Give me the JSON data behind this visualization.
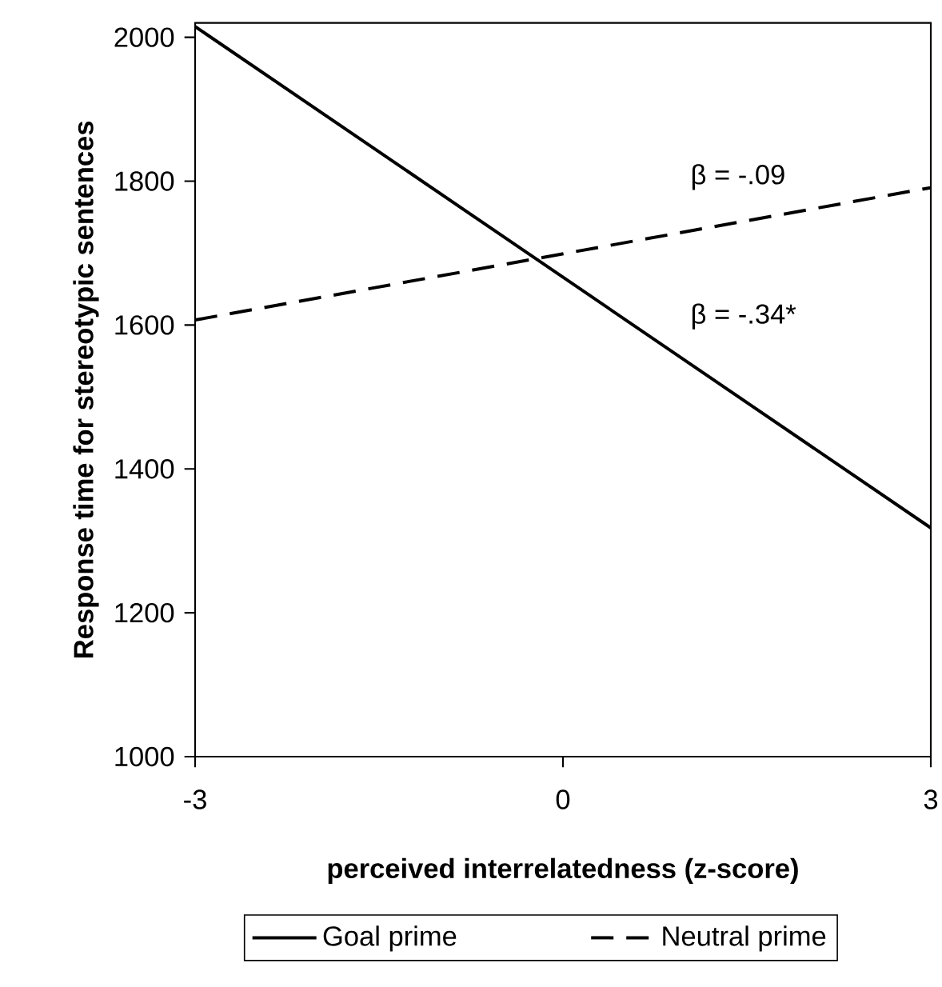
{
  "chart_data": {
    "type": "line",
    "xlabel": "perceived interrelatedness (z-score)",
    "ylabel": "Response time for stereotypic sentences",
    "x": [
      -3,
      3
    ],
    "series": [
      {
        "name": "Goal prime",
        "color": "#000000",
        "values": [
          2015,
          1318
        ],
        "line_style": "solid"
      },
      {
        "name": "Neutral prime",
        "color": "#000000",
        "values": [
          1607,
          1791
        ],
        "line_style": "dashed"
      }
    ],
    "xlim": [
      -3,
      3
    ],
    "xticks": [
      -3,
      0,
      3
    ],
    "ylim": [
      1000,
      2020
    ],
    "yticks": [
      1000,
      1200,
      1400,
      1600,
      1800,
      2000
    ],
    "annotations": [
      "β = -.09",
      "β = -.34*"
    ],
    "legend": "bottom",
    "marker": "none",
    "grid": false
  }
}
